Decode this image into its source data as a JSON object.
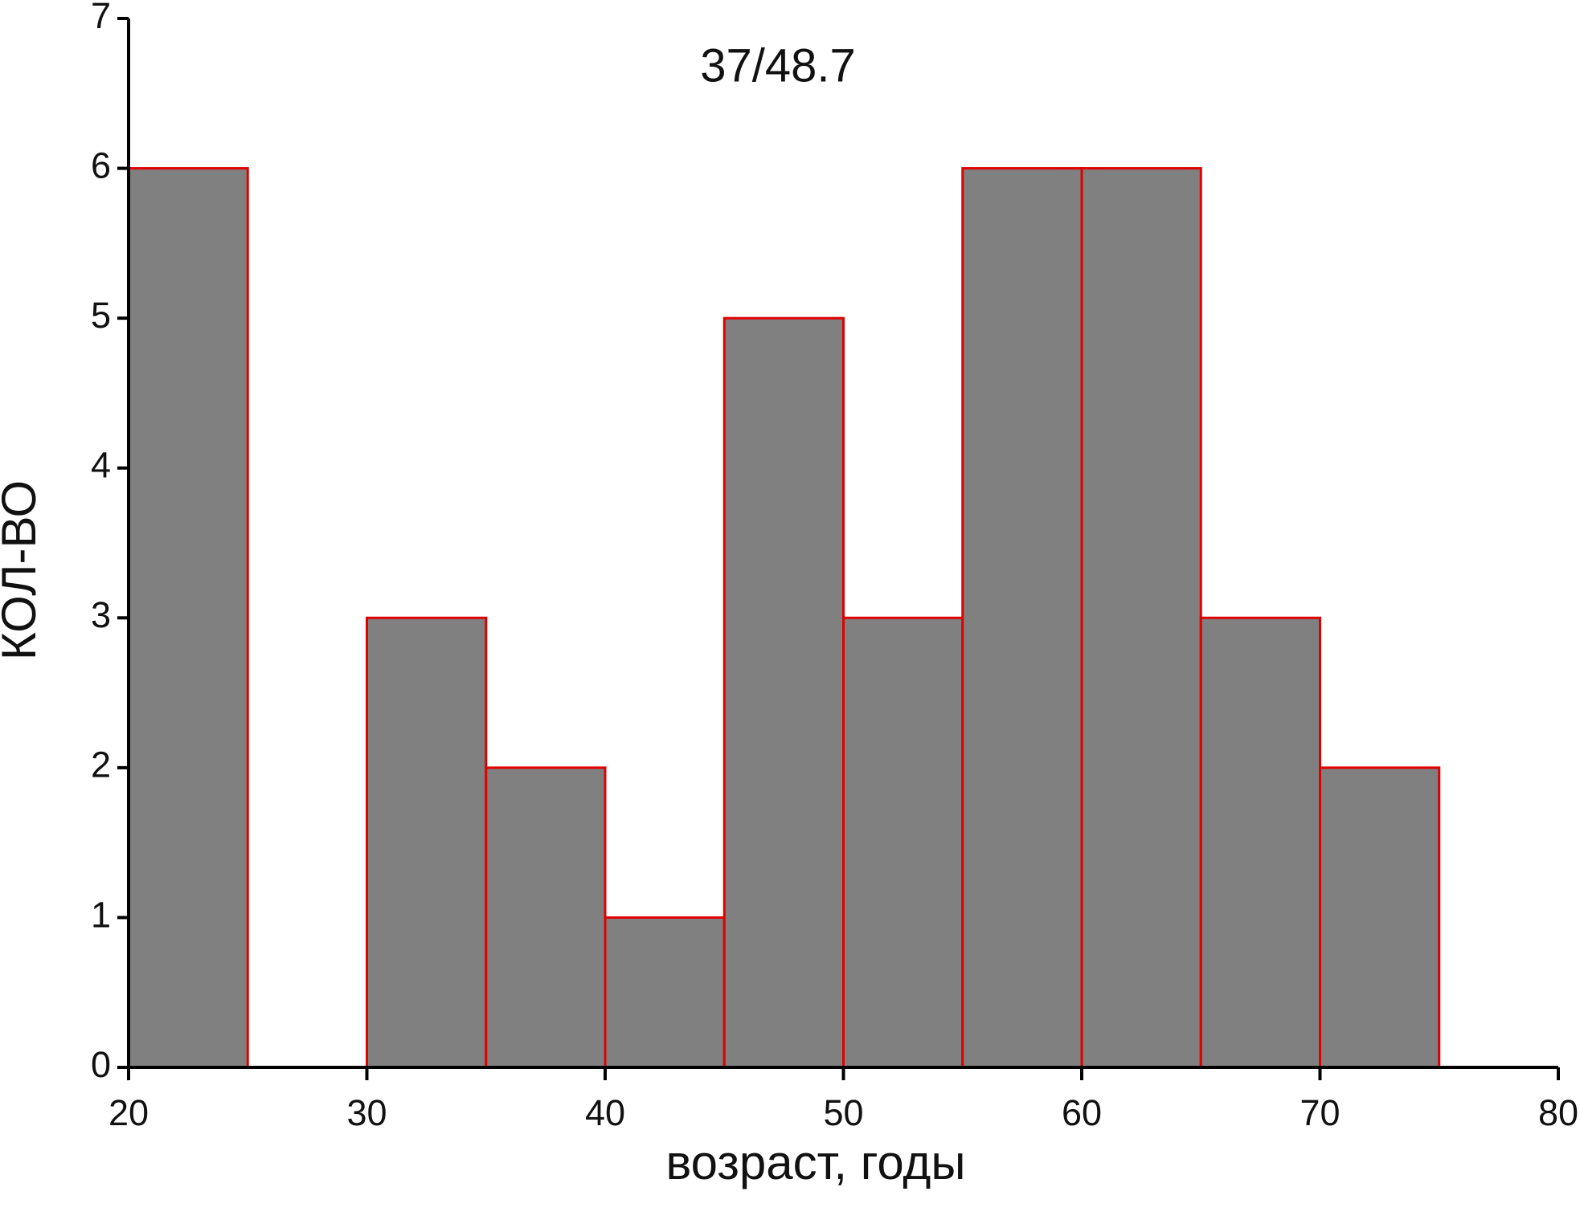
{
  "chart_data": {
    "type": "histogram",
    "annotation": "37/48.7",
    "xlabel": "возраст, годы",
    "ylabel": "КОЛ-ВО",
    "bins": [
      20,
      25,
      30,
      35,
      40,
      45,
      50,
      55,
      60,
      65,
      70,
      75
    ],
    "values": [
      6,
      0,
      3,
      2,
      1,
      5,
      3,
      6,
      6,
      3,
      2
    ],
    "color": "#808080",
    "edgecolor": "#e00000",
    "xlim": [
      20,
      80
    ],
    "xticks": [
      20,
      30,
      40,
      50,
      60,
      70,
      80
    ],
    "ylim": [
      0,
      7
    ],
    "yticks": [
      0,
      1,
      2,
      3,
      4,
      5,
      6,
      7
    ],
    "grid": false
  }
}
